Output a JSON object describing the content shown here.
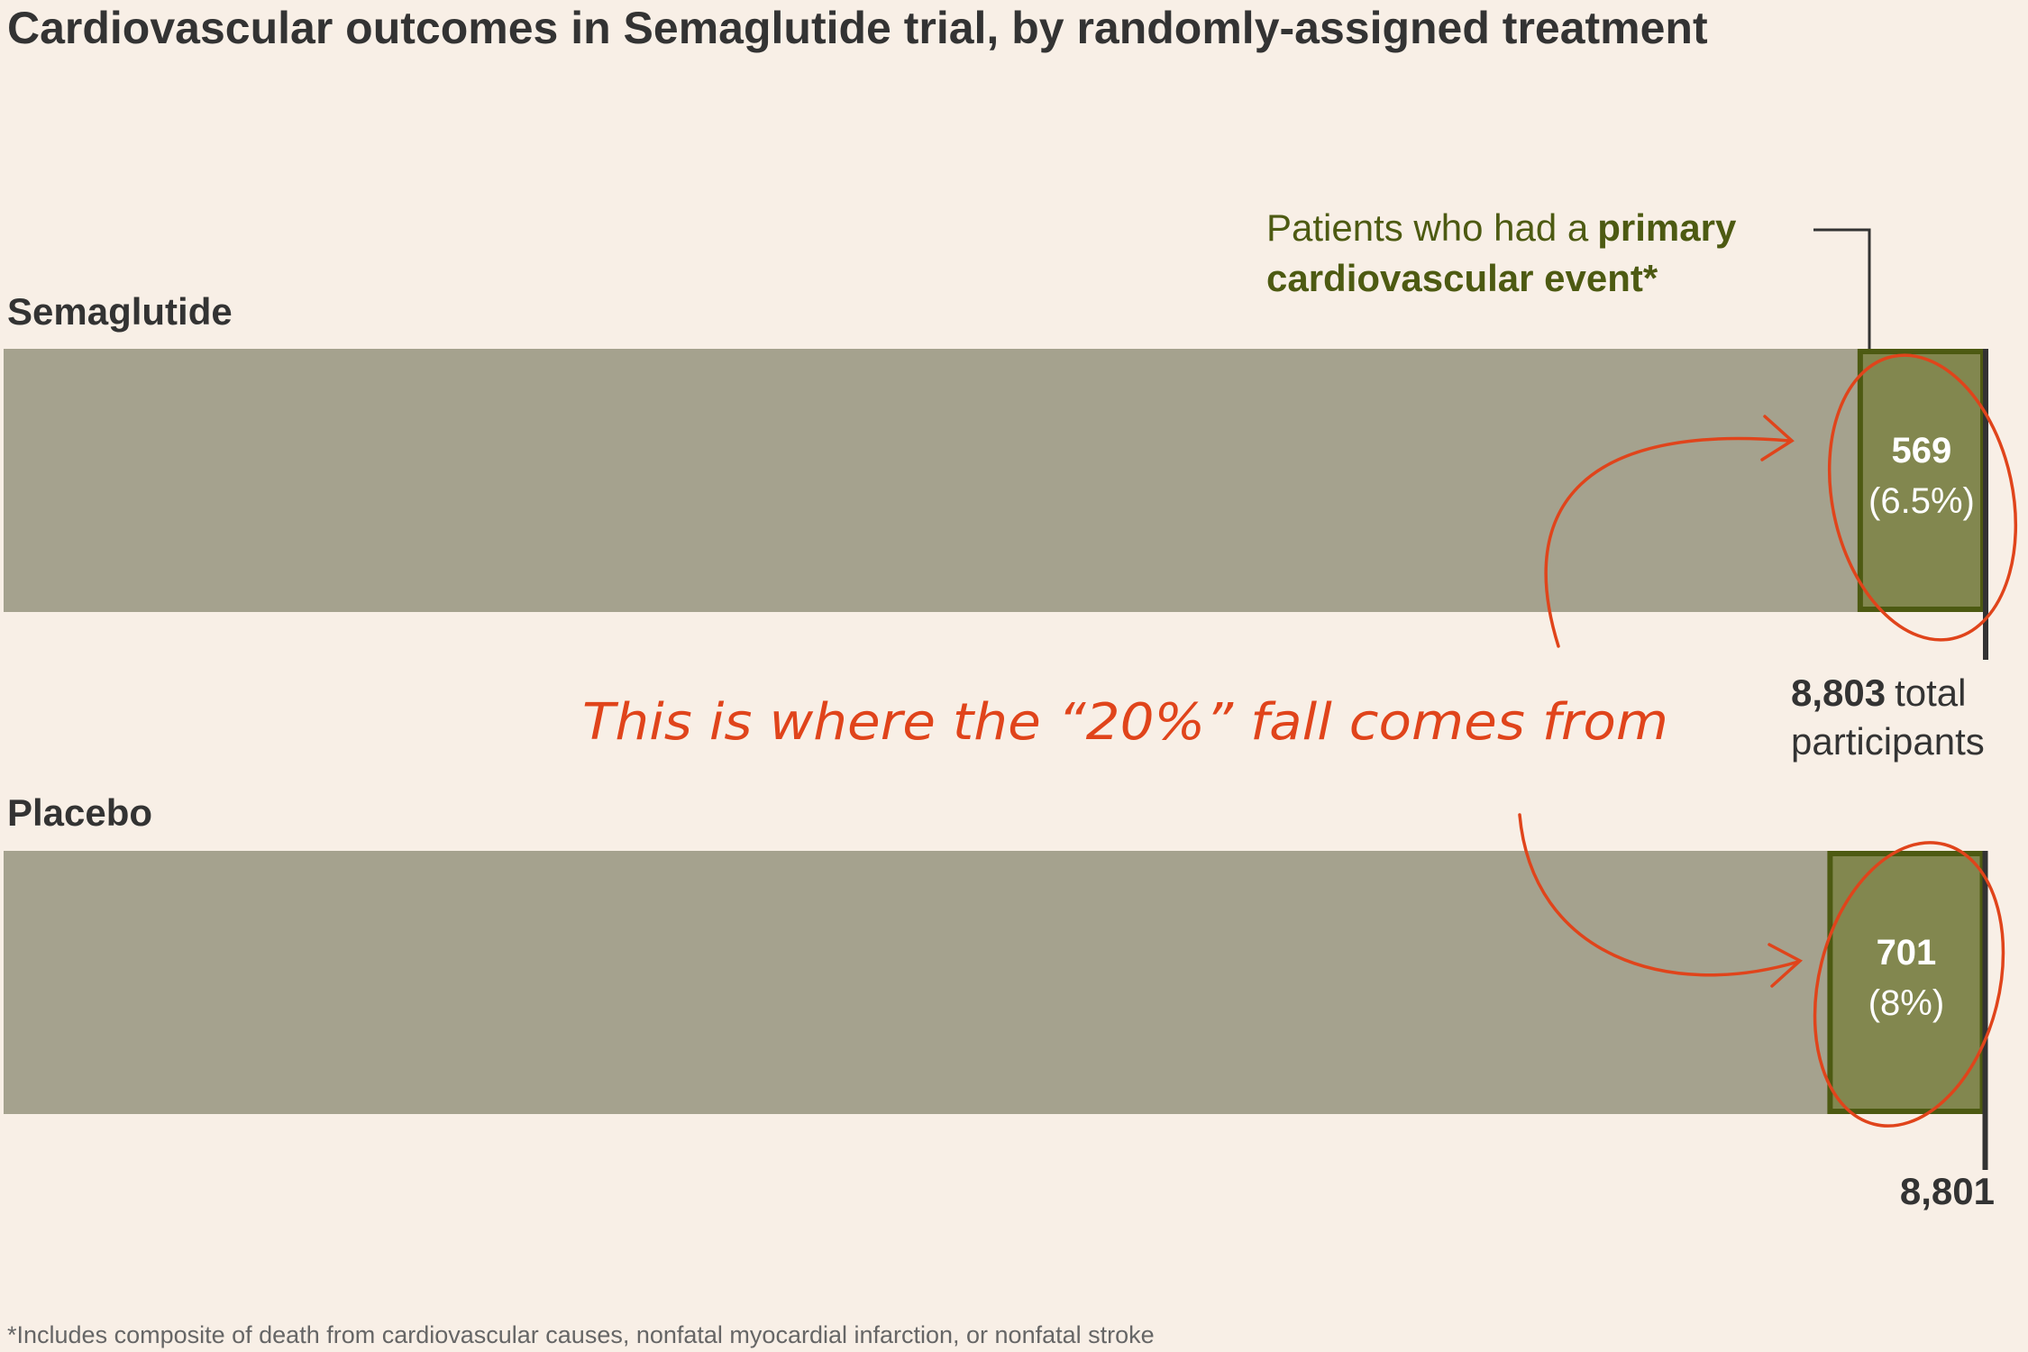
{
  "chart_data": {
    "type": "bar",
    "orientation": "horizontal",
    "title": "Cardiovascular outcomes in Semaglutide trial, by randomly-assigned treatment",
    "categories": [
      "Semaglutide",
      "Placebo"
    ],
    "xlim": [
      0,
      8803
    ],
    "totals": {
      "values": [
        8803,
        8801
      ],
      "value_labels": [
        "8,803",
        "8,801"
      ],
      "unit_label": "total participants",
      "color": "#a5a28e"
    },
    "events": {
      "values": [
        569,
        701
      ],
      "color": "#82874f",
      "border_color": "#4d5a12"
    },
    "event_shares": {
      "values": [
        6.5,
        8
      ],
      "value_labels": [
        "(6.5%)",
        "(8%)"
      ]
    },
    "annotation": {
      "text": "Patients who had a",
      "emphasis": "primary cardiovascular event*"
    },
    "handwritten_note": "This is where the “20%” fall comes from",
    "footnote": "*Includes composite of death from cardiovascular causes, nonfatal myocardial infarction, or nonfatal stroke"
  }
}
